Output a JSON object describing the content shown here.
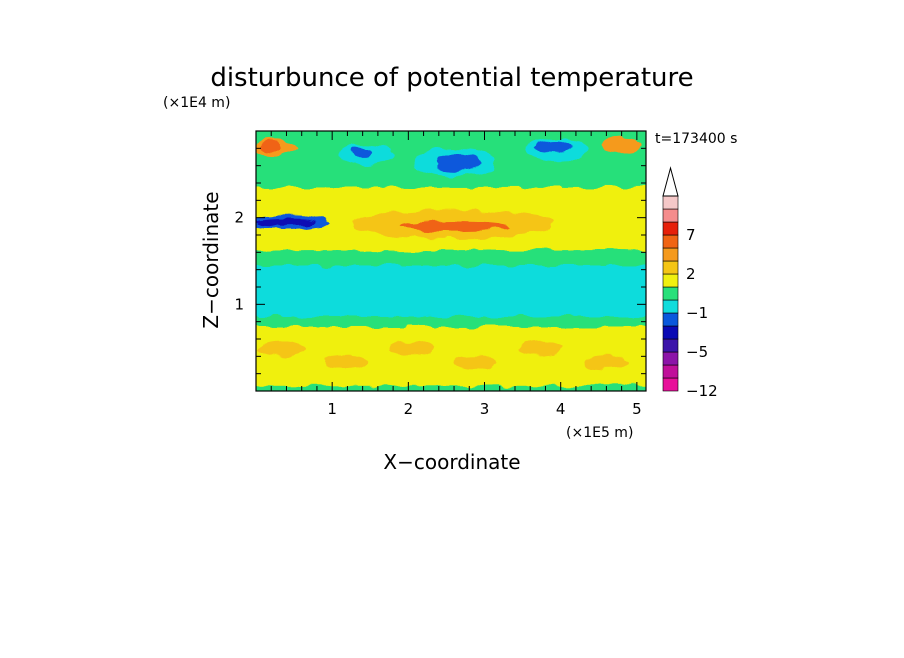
{
  "chart_data": {
    "type": "heatmap",
    "title": "disturbunce of potential temperature",
    "time_label": "t=173400 s",
    "xlabel": "X−coordinate",
    "ylabel": "Z−coordinate",
    "x_unit": "(×1E5 m)",
    "y_unit": "(×1E4 m)",
    "x_ticks": [
      "1",
      "2",
      "3",
      "4",
      "5"
    ],
    "y_ticks": [
      "1",
      "2"
    ],
    "xlim": [
      0,
      5.12
    ],
    "ylim": [
      0,
      3.0
    ],
    "colorbar": {
      "levels": [
        -12,
        -9,
        -7,
        -5,
        -3,
        -2,
        -1,
        0,
        1,
        2,
        3,
        5,
        7,
        9,
        12
      ],
      "tick_labels": [
        "7",
        "2",
        "−1",
        "−5",
        "−12"
      ],
      "colors": [
        "#e8109a",
        "#c0109a",
        "#8c14a8",
        "#3c14aa",
        "#0a0ab4",
        "#0a58dc",
        "#10dcdc",
        "#28e07a",
        "#f0f010",
        "#f5c514",
        "#f59a1e",
        "#f06414",
        "#e6200a",
        "#f58c8c",
        "#f5c8c8"
      ],
      "extend": "max"
    },
    "field_bands": [
      {
        "z": [
          0.0,
          0.06
        ],
        "color": "#28e07a"
      },
      {
        "z": [
          0.06,
          0.74
        ],
        "color": "#f0f010",
        "patches": "#f5c514"
      },
      {
        "z": [
          0.74,
          0.86
        ],
        "color": "#28e07a"
      },
      {
        "z": [
          0.86,
          1.45
        ],
        "color": "#10dcdc"
      },
      {
        "z": [
          1.45,
          1.62
        ],
        "color": "#28e07a"
      },
      {
        "z": [
          1.62,
          2.35
        ],
        "color": "#f0f010",
        "core": "#f06414"
      },
      {
        "z": [
          2.35,
          3.0
        ],
        "color": "#28e07a",
        "cells": [
          "#10dcdc",
          "#0a58dc",
          "#f59a1e"
        ]
      }
    ]
  }
}
